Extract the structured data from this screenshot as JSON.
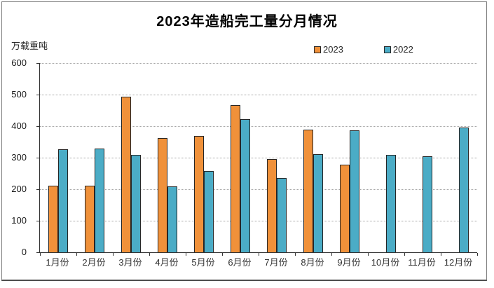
{
  "window": {
    "background_color": "#ffffff",
    "frame_border_color": "#7f7f7f"
  },
  "chart_data": {
    "type": "bar",
    "title": "2023年造船完工量分月情况",
    "unit_label": "万载重吨",
    "categories": [
      "1月份",
      "2月份",
      "3月份",
      "4月份",
      "5月份",
      "6月份",
      "7月份",
      "8月份",
      "9月份",
      "10月份",
      "11月份",
      "12月份"
    ],
    "series": [
      {
        "name": "2023",
        "color": "#F0913A",
        "values": [
          211,
          211,
          494,
          363,
          368,
          466,
          296,
          389,
          277,
          null,
          null,
          null
        ]
      },
      {
        "name": "2022",
        "color": "#4BACC6",
        "values": [
          327,
          328,
          308,
          209,
          257,
          422,
          236,
          310,
          386,
          309,
          304,
          396
        ]
      }
    ],
    "xlabel": "",
    "ylabel": "万载重吨",
    "ylim": [
      0,
      600
    ],
    "ytick_step": 100,
    "yticks": [
      0,
      100,
      200,
      300,
      400,
      500,
      600
    ],
    "grid": "horizontal-dotted",
    "gridline_color": "#a6a6a6",
    "axis_color": "#333333",
    "bar_border_color": "#262626",
    "legend_position": "top-right"
  }
}
